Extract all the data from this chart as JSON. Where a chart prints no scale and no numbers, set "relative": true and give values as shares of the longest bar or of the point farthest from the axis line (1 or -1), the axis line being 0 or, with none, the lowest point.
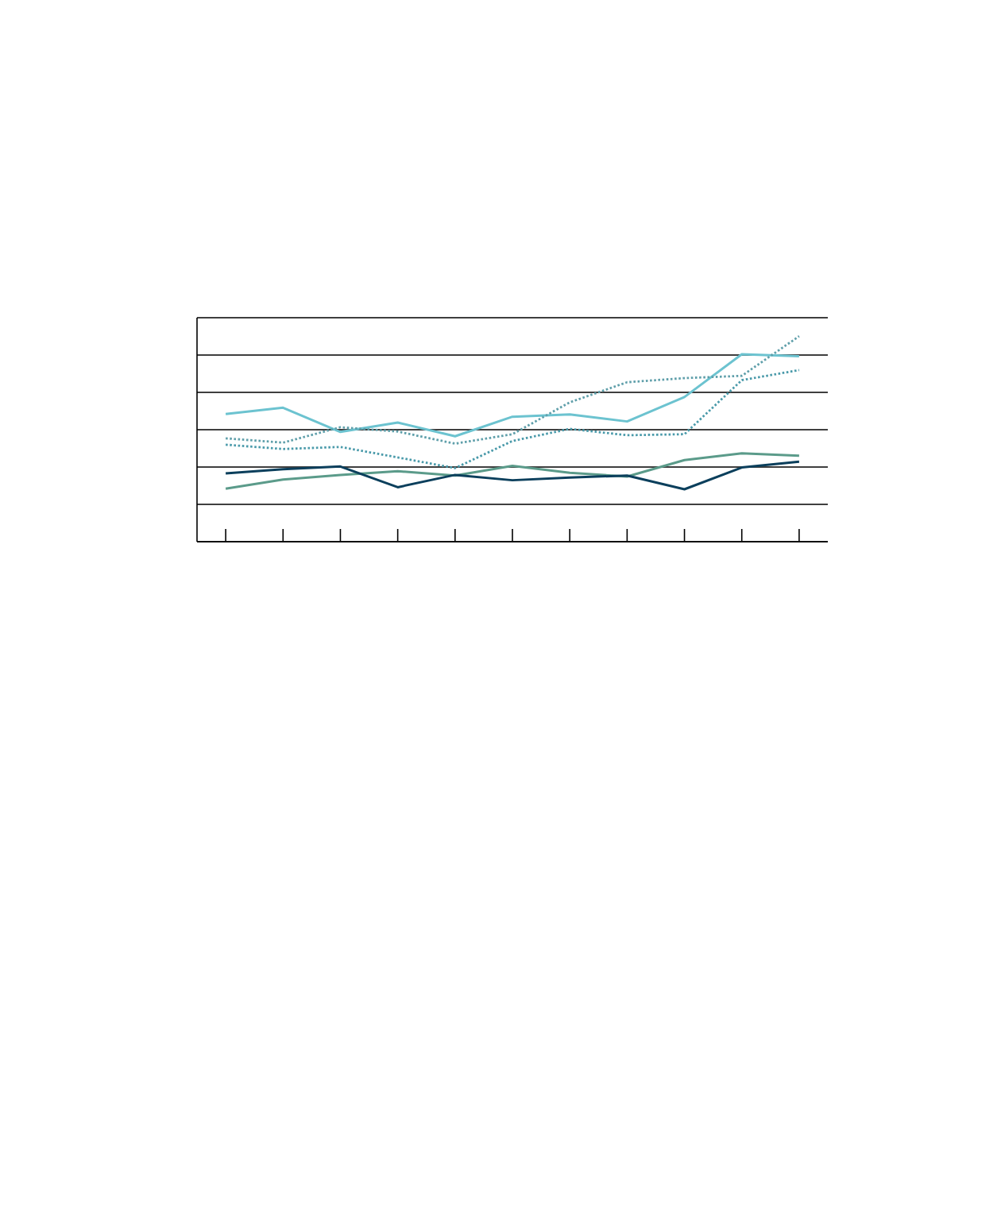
{
  "chart_data": {
    "type": "line",
    "relative": true,
    "grid": "y",
    "tick_labels": false,
    "categories": [
      null,
      null,
      null,
      null,
      null,
      null,
      null,
      null,
      null,
      null,
      null
    ],
    "series": [
      {
        "color": "#6cc3d0",
        "line_style": "solid",
        "values": [
          0.621,
          0.652,
          0.534,
          0.58,
          0.513,
          0.608,
          0.619,
          0.585,
          0.704,
          0.912,
          0.902
        ]
      },
      {
        "color": "#4a9aaa",
        "line_style": "dotted",
        "values": [
          0.472,
          0.451,
          0.461,
          0.41,
          0.358,
          0.49,
          0.549,
          0.518,
          0.523,
          0.786,
          0.835
        ]
      },
      {
        "color": "#5b9b8a",
        "line_style": "solid",
        "values": [
          0.258,
          0.302,
          0.325,
          0.343,
          0.322,
          0.369,
          0.335,
          0.317,
          0.397,
          0.43,
          0.418
        ]
      },
      {
        "color": "#5f9faa",
        "line_style": "dotted",
        "values": [
          0.503,
          0.482,
          0.557,
          0.536,
          0.477,
          0.523,
          0.678,
          0.776,
          0.796,
          0.807,
          1.0
        ]
      },
      {
        "color": "#0b3f5c",
        "line_style": "solid",
        "values": [
          0.332,
          0.353,
          0.366,
          0.265,
          0.325,
          0.299,
          0.312,
          0.322,
          0.255,
          0.361,
          0.389
        ]
      }
    ]
  }
}
